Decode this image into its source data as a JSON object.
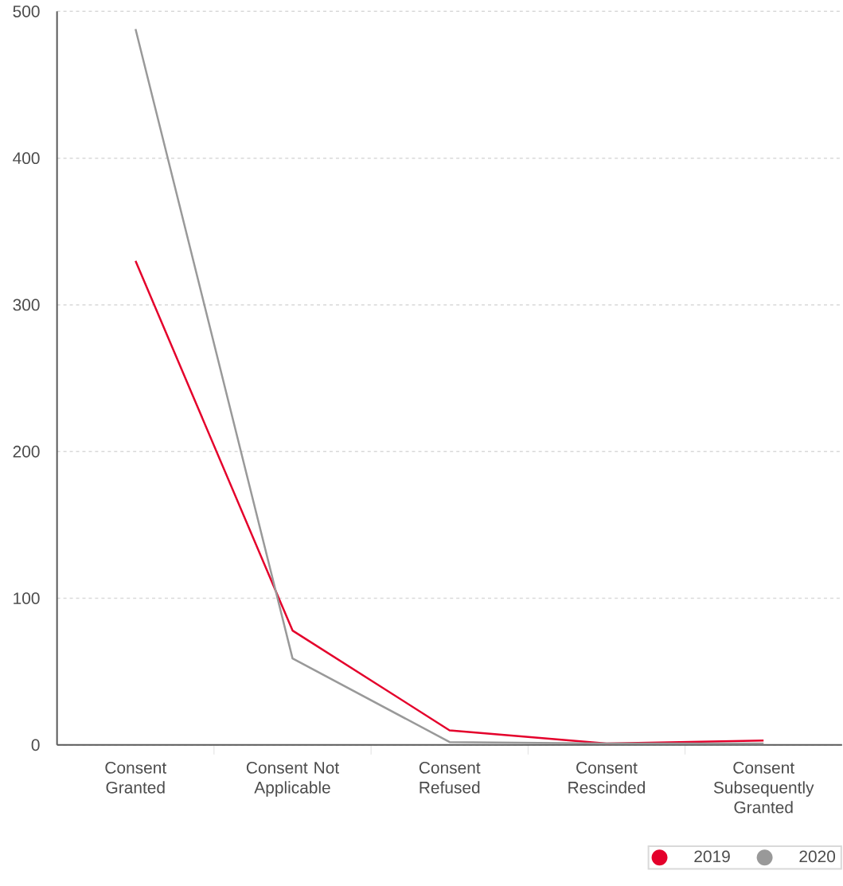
{
  "chart_data": {
    "type": "line",
    "categories": [
      "Consent Granted",
      "Consent Not Applicable",
      "Consent Refused",
      "Consent Rescinded",
      "Consent Subsequently Granted"
    ],
    "series": [
      {
        "name": "2019",
        "color": "#e4002b",
        "values": [
          330,
          78,
          10,
          1,
          3
        ]
      },
      {
        "name": "2020",
        "color": "#999999",
        "values": [
          488,
          59,
          2,
          1,
          1
        ]
      }
    ],
    "ylim": [
      0,
      500
    ],
    "yticks": [
      0,
      100,
      200,
      300,
      400,
      500
    ],
    "grid": "y",
    "legend": "bottom right",
    "marker": "none",
    "line_style": "solid"
  }
}
